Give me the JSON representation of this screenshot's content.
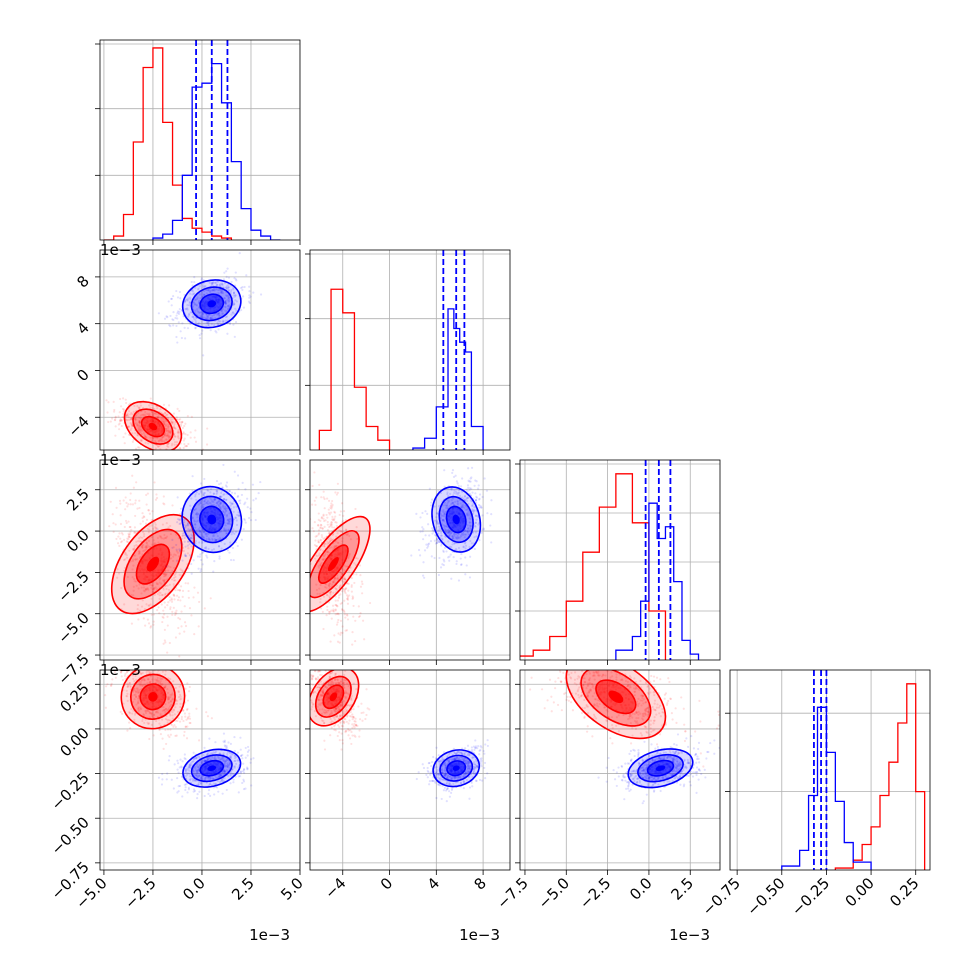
{
  "chart_data": {
    "type": "corner",
    "colors": {
      "series_a": "#ff0000",
      "series_b": "#0000ff"
    },
    "series": [
      {
        "color": "red",
        "mean": [
          -0.0025,
          -0.0048,
          -0.002,
          0.18
        ],
        "std": [
          0.0008,
          0.0009,
          0.0017,
          0.09
        ],
        "histograms": [
          {
            "edges": [
              -0.005,
              -0.0045,
              -0.004,
              -0.0035,
              -0.003,
              -0.0025,
              -0.002,
              -0.0015,
              -0.001,
              -0.0005,
              0.0,
              0.0005,
              0.001,
              0.0015
            ],
            "counts": [
              0.0,
              0.02,
              0.13,
              0.5,
              0.88,
              0.98,
              0.6,
              0.28,
              0.11,
              0.06,
              0.04,
              0.02,
              0.01
            ]
          },
          {
            "edges": [
              -0.006,
              -0.005,
              -0.004,
              -0.003,
              -0.002,
              -0.001,
              0.0
            ],
            "counts": [
              0.1,
              0.82,
              0.7,
              0.32,
              0.12,
              0.05
            ]
          },
          {
            "edges": [
              -0.008,
              -0.007,
              -0.006,
              -0.005,
              -0.004,
              -0.003,
              -0.002,
              -0.001,
              0.0,
              0.001
            ],
            "counts": [
              0.02,
              0.05,
              0.12,
              0.3,
              0.55,
              0.78,
              0.95,
              0.7,
              0.25
            ]
          },
          {
            "edges": [
              -0.2,
              -0.1,
              -0.05,
              0.0,
              0.05,
              0.1,
              0.15,
              0.2,
              0.25,
              0.3
            ],
            "counts": [
              0.01,
              0.05,
              0.13,
              0.22,
              0.38,
              0.55,
              0.75,
              0.95,
              0.4
            ]
          }
        ]
      },
      {
        "color": "blue",
        "mean": [
          0.0005,
          0.0057,
          0.0007,
          -0.22
        ],
        "std": [
          0.00075,
          0.001,
          0.001,
          0.05
        ],
        "histograms": [
          {
            "edges": [
              -0.0025,
              -0.002,
              -0.0015,
              -0.001,
              -0.0005,
              0.0,
              0.0005,
              0.001,
              0.0015,
              0.002,
              0.0025,
              0.003,
              0.0035,
              0.004
            ],
            "counts": [
              0.01,
              0.03,
              0.1,
              0.33,
              0.78,
              0.8,
              0.9,
              0.7,
              0.4,
              0.16,
              0.05,
              0.02,
              0.0
            ]
          },
          {
            "edges": [
              0.002,
              0.003,
              0.004,
              0.005,
              0.0055,
              0.006,
              0.0065,
              0.007,
              0.008
            ],
            "counts": [
              0.01,
              0.06,
              0.22,
              0.72,
              0.62,
              0.55,
              0.5,
              0.12
            ]
          },
          {
            "edges": [
              -0.002,
              -0.001,
              -0.0005,
              0.0,
              0.0005,
              0.001,
              0.0015,
              0.002,
              0.0025,
              0.003
            ],
            "counts": [
              0.05,
              0.12,
              0.3,
              0.8,
              0.62,
              0.68,
              0.4,
              0.1,
              0.03
            ]
          },
          {
            "edges": [
              -0.5,
              -0.4,
              -0.35,
              -0.3,
              -0.25,
              -0.2,
              -0.15,
              -0.1,
              0.0
            ],
            "counts": [
              0.02,
              0.1,
              0.38,
              0.83,
              0.6,
              0.35,
              0.14,
              0.04
            ]
          }
        ]
      }
    ],
    "quantile_lines": [
      [
        -0.0003,
        0.0005,
        0.0013
      ],
      [
        0.0046,
        0.0057,
        0.0064
      ],
      [
        -0.0002,
        0.0006,
        0.0013
      ],
      [
        -0.32,
        -0.28,
        -0.25
      ]
    ],
    "ranges": [
      [
        -0.0052,
        0.005
      ],
      [
        -0.0068,
        0.0103
      ],
      [
        -0.0078,
        0.0043
      ],
      [
        -0.79,
        0.33
      ]
    ],
    "ticks": [
      {
        "values": [
          -0.005,
          -0.0025,
          0.0,
          0.0025,
          0.005
        ],
        "labels": [
          "−5.0",
          "−2.5",
          "0.0",
          "2.5",
          "5.0"
        ]
      },
      {
        "values": [
          -0.004,
          0.0,
          0.004,
          0.008
        ],
        "labels": [
          "−4",
          "0",
          "4",
          "8"
        ]
      },
      {
        "values": [
          -0.0075,
          -0.005,
          -0.0025,
          0.0,
          0.0025
        ],
        "labels": [
          "−7.5",
          "−5.0",
          "−2.5",
          "0.0",
          "2.5"
        ]
      },
      {
        "values": [
          -0.75,
          -0.5,
          -0.25,
          0.0,
          0.25
        ],
        "labels": [
          "−0.75",
          "−0.50",
          "−0.25",
          "0.00",
          "0.25"
        ]
      }
    ],
    "y_ticks": [
      {
        "values": [
          -0.004,
          0.0,
          0.004,
          0.008
        ],
        "labels": [
          "−4",
          "0",
          "4",
          "8"
        ]
      },
      {
        "values": [
          -0.0075,
          -0.005,
          -0.0025,
          0.0,
          0.0025
        ],
        "labels": [
          "−7.5",
          "−5.0",
          "−2.5",
          "0.0",
          "2.5"
        ]
      },
      {
        "values": [
          -0.75,
          -0.5,
          -0.25,
          0.0,
          0.25
        ],
        "labels": [
          "−0.75",
          "−0.50",
          "−0.25",
          "0.00",
          "0.25"
        ]
      }
    ],
    "y_ticks_diagonal": [
      [
        0.33,
        0.67,
        1.0
      ],
      [
        0.33,
        0.67,
        1.0
      ],
      [
        0.25,
        0.5,
        0.75,
        1.0
      ],
      [
        0.4,
        0.8
      ]
    ],
    "offset_label": "1e−3",
    "grid": true
  }
}
